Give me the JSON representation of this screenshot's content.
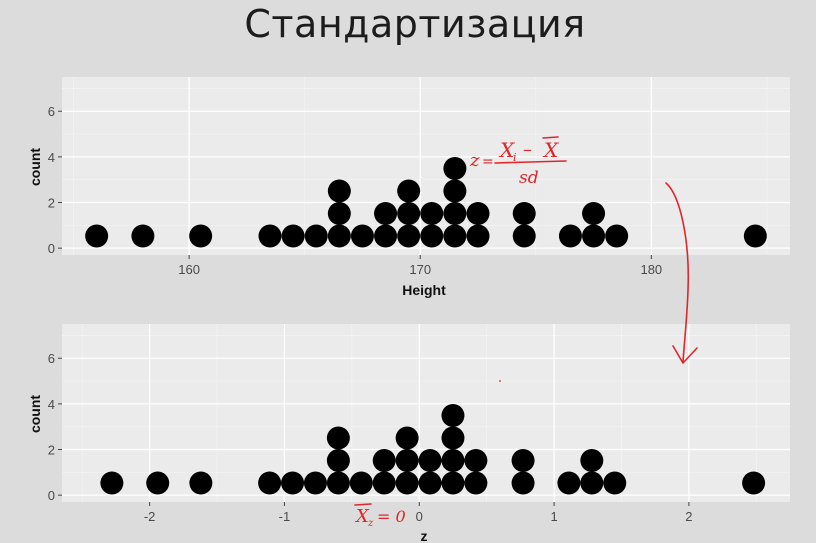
{
  "slide": {
    "title": "Стандартизация"
  },
  "annotations": {
    "formula_lhs": "z",
    "formula_numerator": "X",
    "formula_numerator_sub": "i",
    "formula_minus": "–",
    "formula_mean": "X",
    "formula_denominator": "sd",
    "mean_label": "X",
    "mean_sub": "z",
    "mean_equals": "= 0"
  },
  "colors": {
    "panel": "#ebebeb",
    "grid": "#ffffff",
    "dot": "#000000",
    "annotation": "#e0262b"
  },
  "chart_data": [
    {
      "type": "scatter",
      "xlabel": "Height",
      "ylabel": "count",
      "xlim": [
        154.5,
        186.0
      ],
      "ylim": [
        -0.3,
        7.5
      ],
      "xticks": [
        160,
        170,
        180
      ],
      "yticks": [
        0,
        2,
        4,
        6
      ],
      "grid": true,
      "columns": [
        {
          "x": 156.0,
          "n": 1
        },
        {
          "x": 158.0,
          "n": 1
        },
        {
          "x": 160.5,
          "n": 1
        },
        {
          "x": 163.5,
          "n": 1
        },
        {
          "x": 164.5,
          "n": 1
        },
        {
          "x": 165.5,
          "n": 1
        },
        {
          "x": 166.5,
          "n": 3
        },
        {
          "x": 167.5,
          "n": 1
        },
        {
          "x": 168.5,
          "n": 2
        },
        {
          "x": 169.5,
          "n": 3
        },
        {
          "x": 170.5,
          "n": 2
        },
        {
          "x": 171.5,
          "n": 4
        },
        {
          "x": 172.5,
          "n": 2
        },
        {
          "x": 174.5,
          "n": 2
        },
        {
          "x": 176.5,
          "n": 1
        },
        {
          "x": 177.5,
          "n": 2
        },
        {
          "x": 178.5,
          "n": 1
        },
        {
          "x": 184.5,
          "n": 1
        }
      ]
    },
    {
      "type": "scatter",
      "xlabel": "z",
      "ylabel": "count",
      "xlim": [
        -2.65,
        2.75
      ],
      "ylim": [
        -0.3,
        7.5
      ],
      "xticks": [
        -2,
        -1,
        0,
        1,
        2
      ],
      "yticks": [
        0,
        2,
        4,
        6
      ],
      "grid": true,
      "columns": [
        {
          "x": -2.28,
          "n": 1
        },
        {
          "x": -1.94,
          "n": 1
        },
        {
          "x": -1.62,
          "n": 1
        },
        {
          "x": -1.11,
          "n": 1
        },
        {
          "x": -0.94,
          "n": 1
        },
        {
          "x": -0.77,
          "n": 1
        },
        {
          "x": -0.6,
          "n": 3
        },
        {
          "x": -0.43,
          "n": 1
        },
        {
          "x": -0.26,
          "n": 2
        },
        {
          "x": -0.09,
          "n": 3
        },
        {
          "x": 0.08,
          "n": 2
        },
        {
          "x": 0.25,
          "n": 4
        },
        {
          "x": 0.42,
          "n": 2
        },
        {
          "x": 0.77,
          "n": 2
        },
        {
          "x": 1.11,
          "n": 1
        },
        {
          "x": 1.28,
          "n": 2
        },
        {
          "x": 1.45,
          "n": 1
        },
        {
          "x": 2.48,
          "n": 1
        }
      ]
    }
  ]
}
